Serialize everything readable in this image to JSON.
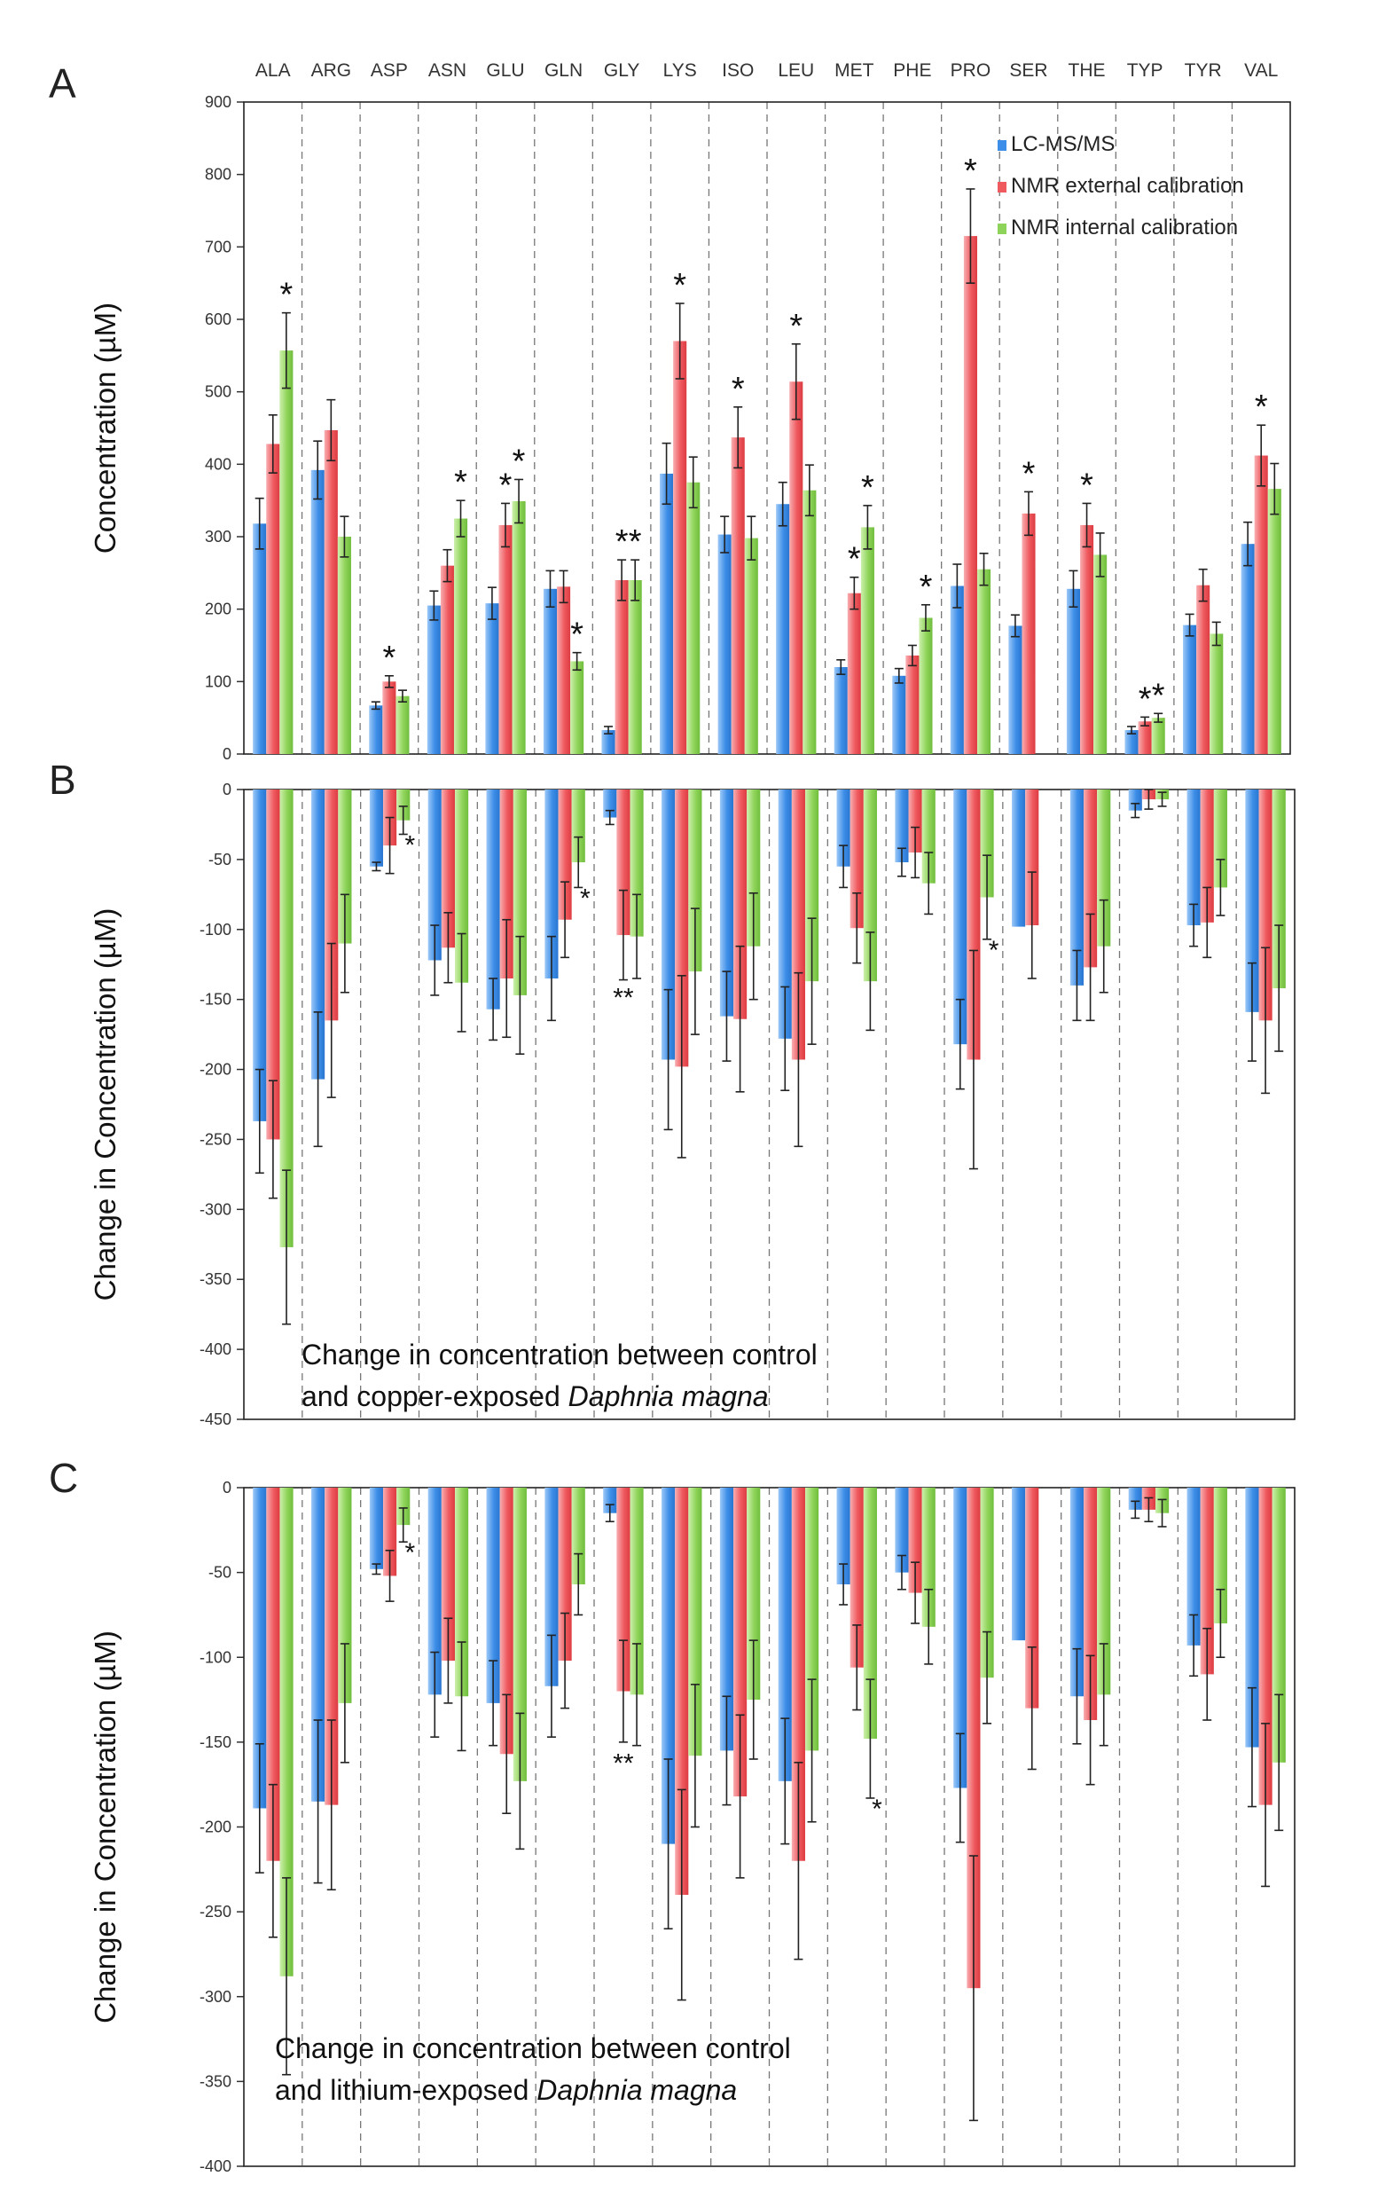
{
  "figure": {
    "amino_acids": [
      "ALA",
      "ARG",
      "ASP",
      "ASN",
      "GLU",
      "GLN",
      "GLY",
      "LYS",
      "ISO",
      "LEU",
      "MET",
      "PHE",
      "PRO",
      "SER",
      "THE",
      "TYP",
      "TYR",
      "VAL"
    ],
    "series_colors": {
      "lcms": "#3d8ee8",
      "nmr_ext": "#ef5a5f",
      "nmr_int": "#8fd45a"
    }
  },
  "chart_data": [
    {
      "type": "bar",
      "panel_label": "A",
      "ylabel": "Concentration (µM)",
      "ylim": [
        0,
        900
      ],
      "yticks": [
        0,
        100,
        200,
        300,
        400,
        500,
        600,
        700,
        800,
        900
      ],
      "ytick_labels": [
        "0",
        "100",
        "200",
        "300",
        "400",
        "500",
        "600",
        "700",
        "800",
        "900"
      ],
      "categories": [
        "ALA",
        "ARG",
        "ASP",
        "ASN",
        "GLU",
        "GLN",
        "GLY",
        "LYS",
        "ISO",
        "LEU",
        "MET",
        "PHE",
        "PRO",
        "SER",
        "THE",
        "TYP",
        "TYR",
        "VAL"
      ],
      "legend": {
        "position": "top-right",
        "entries": [
          "LC-MS/MS",
          "NMR external calibration",
          "NMR internal calibration"
        ]
      },
      "series": [
        {
          "name": "LC-MS/MS",
          "values": [
            318,
            392,
            67,
            205,
            208,
            228,
            33,
            387,
            303,
            345,
            120,
            108,
            232,
            177,
            228,
            33,
            178,
            290
          ],
          "errors": [
            35,
            40,
            5,
            20,
            22,
            25,
            5,
            42,
            25,
            30,
            10,
            10,
            30,
            15,
            25,
            5,
            15,
            30
          ],
          "stars": [
            "",
            "",
            "",
            "",
            "",
            "",
            "",
            "",
            "",
            "",
            "",
            "",
            "",
            "",
            "",
            "",
            "",
            ""
          ]
        },
        {
          "name": "NMR external calibration",
          "values": [
            428,
            447,
            100,
            260,
            316,
            231,
            240,
            570,
            437,
            514,
            222,
            136,
            715,
            332,
            316,
            45,
            233,
            412
          ],
          "errors": [
            40,
            42,
            8,
            22,
            30,
            22,
            28,
            52,
            42,
            52,
            22,
            14,
            65,
            30,
            30,
            6,
            22,
            42
          ],
          "stars": [
            "",
            "",
            "*",
            "",
            "*",
            "",
            "*",
            "*",
            "*",
            "*",
            "*",
            "",
            "*",
            "*",
            "*",
            "*",
            "",
            "*"
          ]
        },
        {
          "name": "NMR internal calibration",
          "values": [
            557,
            300,
            80,
            325,
            349,
            128,
            240,
            375,
            298,
            364,
            313,
            188,
            255,
            0,
            275,
            50,
            166,
            366
          ],
          "errors": [
            52,
            28,
            8,
            25,
            30,
            12,
            28,
            35,
            30,
            35,
            30,
            18,
            22,
            0,
            30,
            6,
            16,
            35
          ],
          "stars": [
            "*",
            "",
            "",
            "*",
            "*",
            "*",
            "*",
            "",
            "",
            "",
            "*",
            "*",
            "",
            "",
            "",
            "*",
            "",
            ""
          ]
        }
      ]
    },
    {
      "type": "bar",
      "panel_label": "B",
      "ylabel": "Change in Concentration (µM)",
      "ylim": [
        -450,
        0
      ],
      "yticks": [
        0,
        -50,
        -100,
        -150,
        -200,
        -250,
        -300,
        -350,
        -400,
        -450
      ],
      "ytick_labels": [
        "0",
        "-50",
        "-100",
        "-150",
        "-200",
        "-250",
        "-300",
        "-350",
        "-400",
        "-450"
      ],
      "categories": [
        "ALA",
        "ARG",
        "ASP",
        "ASN",
        "GLU",
        "GLN",
        "GLY",
        "LYS",
        "ISO",
        "LEU",
        "MET",
        "PHE",
        "PRO",
        "SER",
        "THE",
        "TYP",
        "TYR",
        "VAL"
      ],
      "annotation": {
        "line1": "Change in concentration between control",
        "line2_prefix": "and copper-exposed ",
        "line2_italic": "Daphnia magna"
      },
      "series": [
        {
          "name": "LC-MS/MS",
          "values": [
            -237,
            -207,
            -55,
            -122,
            -157,
            -135,
            -20,
            -193,
            -162,
            -178,
            -55,
            -52,
            -182,
            -98,
            -140,
            -15,
            -97,
            -159
          ],
          "errors": [
            37,
            48,
            3,
            25,
            22,
            30,
            5,
            50,
            32,
            37,
            15,
            10,
            32,
            0,
            25,
            5,
            15,
            35
          ]
        },
        {
          "name": "NMR external calibration",
          "values": [
            -250,
            -165,
            -40,
            -113,
            -135,
            -93,
            -104,
            -198,
            -164,
            -193,
            -99,
            -45,
            -193,
            -97,
            -127,
            -7,
            -95,
            -165
          ],
          "errors": [
            42,
            55,
            20,
            25,
            42,
            27,
            32,
            65,
            52,
            62,
            25,
            18,
            78,
            38,
            38,
            7,
            25,
            52
          ]
        },
        {
          "name": "NMR internal calibration",
          "values": [
            -327,
            -110,
            -22,
            -138,
            -147,
            -52,
            -105,
            -130,
            -112,
            -137,
            -137,
            -67,
            -77,
            0,
            -112,
            -7,
            -70,
            -142
          ],
          "errors": [
            55,
            35,
            10,
            35,
            42,
            18,
            30,
            45,
            38,
            45,
            35,
            22,
            30,
            0,
            33,
            5,
            20,
            45
          ]
        }
      ],
      "star_labels": [
        "",
        "",
        "*",
        "",
        "",
        "*",
        "**",
        "",
        "",
        "",
        "",
        "",
        "*",
        "",
        "",
        "",
        "",
        ""
      ]
    },
    {
      "type": "bar",
      "panel_label": "C",
      "ylabel": "Change in Concentration (µM)",
      "ylim": [
        -400,
        0
      ],
      "yticks": [
        0,
        -50,
        -100,
        -150,
        -200,
        -250,
        -300,
        -350,
        -400
      ],
      "ytick_labels": [
        "0",
        "-50",
        "-100",
        "-150",
        "-200",
        "-250",
        "-300",
        "-350",
        "-400"
      ],
      "categories": [
        "ALA",
        "ARG",
        "ASP",
        "ASN",
        "GLU",
        "GLN",
        "GLY",
        "LYS",
        "ISO",
        "LEU",
        "MET",
        "PHE",
        "PRO",
        "SER",
        "THE",
        "TYP",
        "TYR",
        "VAL"
      ],
      "annotation": {
        "line1": "Change in concentration between control",
        "line2_prefix": "and lithium-exposed ",
        "line2_italic": "Daphnia magna"
      },
      "series": [
        {
          "name": "LC-MS/MS",
          "values": [
            -189,
            -185,
            -48,
            -122,
            -127,
            -117,
            -15,
            -210,
            -155,
            -173,
            -57,
            -50,
            -177,
            -90,
            -123,
            -13,
            -93,
            -153
          ],
          "errors": [
            38,
            48,
            3,
            25,
            25,
            30,
            5,
            50,
            32,
            37,
            12,
            10,
            32,
            0,
            28,
            5,
            18,
            35
          ]
        },
        {
          "name": "NMR external calibration",
          "values": [
            -220,
            -187,
            -52,
            -102,
            -157,
            -102,
            -120,
            -240,
            -182,
            -220,
            -106,
            -62,
            -295,
            -130,
            -137,
            -13,
            -110,
            -187
          ],
          "errors": [
            45,
            50,
            15,
            25,
            35,
            28,
            30,
            62,
            48,
            58,
            25,
            18,
            78,
            36,
            38,
            7,
            27,
            48
          ]
        },
        {
          "name": "NMR internal calibration",
          "values": [
            -288,
            -127,
            -22,
            -123,
            -173,
            -57,
            -122,
            -158,
            -125,
            -155,
            -148,
            -82,
            -112,
            0,
            -122,
            -15,
            -80,
            -162
          ],
          "errors": [
            58,
            35,
            10,
            32,
            40,
            18,
            30,
            42,
            35,
            42,
            35,
            22,
            27,
            0,
            30,
            8,
            20,
            40
          ]
        }
      ],
      "star_labels": [
        "",
        "",
        "*",
        "",
        "",
        "",
        "**",
        "",
        "",
        "",
        "*",
        "",
        "",
        "",
        "",
        "",
        "",
        ""
      ]
    }
  ]
}
